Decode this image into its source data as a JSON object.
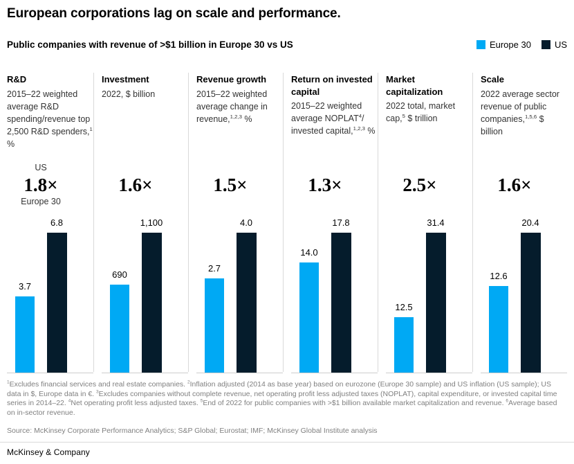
{
  "header": {
    "title": "European corporations lag on scale and performance.",
    "subtitle": "Public companies with revenue of >$1 billion in Europe 30 vs US"
  },
  "legend": {
    "items": [
      {
        "label": "Europe 30",
        "color": "#00a9f4"
      },
      {
        "label": "US",
        "color": "#051c2c"
      }
    ]
  },
  "colors": {
    "europe_bar": "#00a9f4",
    "us_bar": "#051c2c",
    "divider": "#d9d9d9",
    "footnote_text": "#7f7f7f"
  },
  "chart_data": {
    "type": "bar",
    "title": "Public companies with revenue of >$1 billion in Europe 30 vs US",
    "series_names": [
      "Europe 30",
      "US"
    ],
    "legend_position": "top-right",
    "grid": false,
    "normalization": "each panel scaled so US bar is full height",
    "panels": [
      {
        "metric": "R&D",
        "desc": "2015–22 weighted average R&D spending/revenue top 2,500 R&D spenders,^{1} %",
        "multiplier": "1.8×",
        "multiplier_top_label": "US",
        "multiplier_bottom_label": "Europe 30",
        "europe": {
          "value": 3.7,
          "label": "3.7"
        },
        "us": {
          "value": 6.8,
          "label": "6.8"
        }
      },
      {
        "metric": "Investment",
        "desc": "2022, $ billion",
        "multiplier": "1.6×",
        "multiplier_top_label": "",
        "multiplier_bottom_label": "",
        "europe": {
          "value": 690,
          "label": "690"
        },
        "us": {
          "value": 1100,
          "label": "1,100"
        }
      },
      {
        "metric": "Revenue growth",
        "desc": "2015–22 weighted average change in revenue,^{1,2,3} %",
        "multiplier": "1.5×",
        "multiplier_top_label": "",
        "multiplier_bottom_label": "",
        "europe": {
          "value": 2.7,
          "label": "2.7"
        },
        "us": {
          "value": 4.0,
          "label": "4.0"
        }
      },
      {
        "metric": "Return on invested capital",
        "desc": "2015–22 weighted average NOPLAT^{4}/ invested capital,^{1,2,3} %",
        "multiplier": "1.3×",
        "multiplier_top_label": "",
        "multiplier_bottom_label": "",
        "europe": {
          "value": 14.0,
          "label": "14.0"
        },
        "us": {
          "value": 17.8,
          "label": "17.8"
        }
      },
      {
        "metric": "Market capitalization",
        "desc": "2022 total, market cap,^{5} $ trillion",
        "multiplier": "2.5×",
        "multiplier_top_label": "",
        "multiplier_bottom_label": "",
        "europe": {
          "value": 12.5,
          "label": "12.5"
        },
        "us": {
          "value": 31.4,
          "label": "31.4"
        }
      },
      {
        "metric": "Scale",
        "desc": "2022 average sector revenue of public companies,^{1,5,6} $ billion",
        "multiplier": "1.6×",
        "multiplier_top_label": "",
        "multiplier_bottom_label": "",
        "europe": {
          "value": 12.6,
          "label": "12.6"
        },
        "us": {
          "value": 20.4,
          "label": "20.4"
        }
      }
    ]
  },
  "footnotes": {
    "text": "^{1}Excludes financial services and real estate companies. ^{2}Inflation adjusted (2014 as base year) based on eurozone (Europe 30 sample) and US inflation (US sample); US data in $, Europe data in €. ^{3}Excludes companies without complete revenue, net operating profit less adjusted taxes (NOPLAT), capital expenditure, or invested capital time series in 2014–22. ^{4}Net operating profit less adjusted taxes. ^{5}End of 2022 for public companies with >$1 billion available market capitalization and revenue. ^{6}Average based on in-sector revenue.",
    "source": "Source: McKinsey Corporate Performance Analytics; S&P Global; Eurostat; IMF; McKinsey Global Institute analysis"
  },
  "footer": {
    "company": "McKinsey & Company"
  }
}
